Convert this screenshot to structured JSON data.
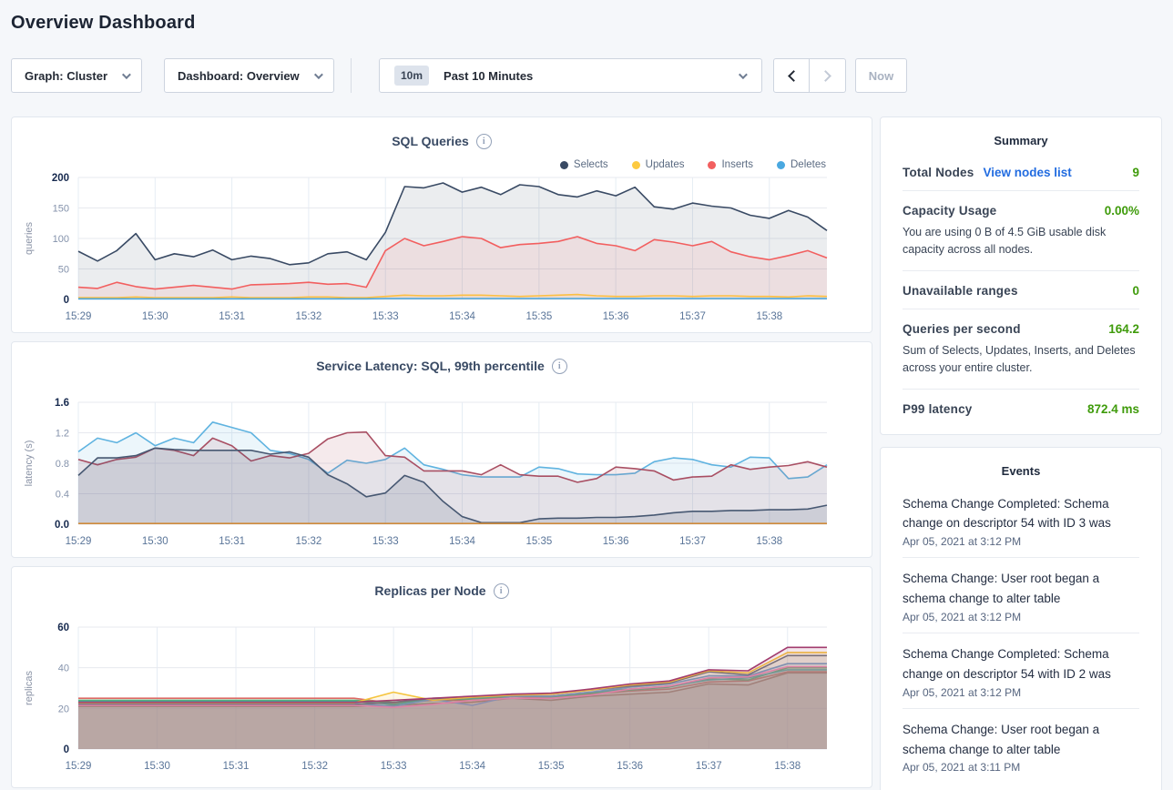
{
  "page": {
    "title": "Overview Dashboard"
  },
  "controls": {
    "graph_dropdown": "Graph: Cluster",
    "dashboard_dropdown": "Dashboard: Overview",
    "time_badge": "10m",
    "time_label": "Past 10 Minutes",
    "now_label": "Now"
  },
  "summary": {
    "title": "Summary",
    "rows": [
      {
        "label": "Total Nodes",
        "link": "View nodes list",
        "value": "9",
        "sub": ""
      },
      {
        "label": "Capacity Usage",
        "link": "",
        "value": "0.00%",
        "sub": "You are using 0 B of 4.5 GiB usable disk capacity across all nodes."
      },
      {
        "label": "Unavailable ranges",
        "link": "",
        "value": "0",
        "sub": ""
      },
      {
        "label": "Queries per second",
        "link": "",
        "value": "164.2",
        "sub": "Sum of Selects, Updates, Inserts, and Deletes across your entire cluster."
      },
      {
        "label": "P99 latency",
        "link": "",
        "value": "872.4 ms",
        "sub": ""
      }
    ]
  },
  "events": {
    "title": "Events",
    "items": [
      {
        "text": "Schema Change Completed: Schema change on descriptor 54 with ID 3 was",
        "time": "Apr 05, 2021 at 3:12 PM"
      },
      {
        "text": "Schema Change: User root began a schema change to alter table",
        "time": "Apr 05, 2021 at 3:12 PM"
      },
      {
        "text": "Schema Change Completed: Schema change on descriptor 54 with ID 2 was",
        "time": "Apr 05, 2021 at 3:12 PM"
      },
      {
        "text": "Schema Change: User root began a schema change to alter table",
        "time": "Apr 05, 2021 at 3:11 PM"
      }
    ]
  },
  "chart_data": [
    {
      "type": "area",
      "title": "SQL Queries",
      "ylabel": "queries",
      "ylim": [
        0,
        200
      ],
      "yticks": [
        0,
        50,
        100,
        150,
        200
      ],
      "ytick_labels": [
        "0",
        "50",
        "100",
        "150",
        "200"
      ],
      "x_ticks": [
        "15:29",
        "15:30",
        "15:31",
        "15:32",
        "15:33",
        "15:34",
        "15:35",
        "15:36",
        "15:37",
        "15:38"
      ],
      "points_per_minute": 4,
      "grid": true,
      "legend_position": "top-right",
      "series": [
        {
          "name": "Selects",
          "color": "#394a64",
          "fill_opacity": 0.1,
          "values": [
            79,
            63,
            80,
            108,
            65,
            75,
            70,
            81,
            65,
            71,
            67,
            57,
            60,
            75,
            78,
            65,
            110,
            185,
            183,
            191,
            176,
            184,
            172,
            188,
            185,
            172,
            168,
            178,
            170,
            184,
            152,
            148,
            158,
            153,
            150,
            138,
            133,
            146,
            135,
            113
          ]
        },
        {
          "name": "Updates",
          "color": "#fdca40",
          "fill_opacity": 0.1,
          "values": [
            3,
            3,
            3,
            4,
            3,
            3,
            3,
            3,
            4,
            3,
            3,
            3,
            4,
            4,
            3,
            3,
            5,
            7,
            6,
            6,
            7,
            7,
            6,
            5,
            6,
            7,
            8,
            6,
            5,
            5,
            6,
            6,
            5,
            6,
            6,
            5,
            5,
            4,
            6,
            5
          ]
        },
        {
          "name": "Inserts",
          "color": "#f25f5f",
          "fill_opacity": 0.1,
          "values": [
            20,
            18,
            28,
            21,
            17,
            20,
            23,
            20,
            17,
            24,
            25,
            26,
            28,
            25,
            26,
            20,
            80,
            100,
            88,
            95,
            103,
            100,
            85,
            90,
            92,
            95,
            103,
            92,
            88,
            80,
            98,
            94,
            88,
            95,
            78,
            70,
            65,
            72,
            80,
            68
          ]
        },
        {
          "name": "Deletes",
          "color": "#4aa8e0",
          "fill_opacity": 0.1,
          "values": [
            1,
            1,
            1,
            1,
            1,
            1,
            1,
            1,
            1,
            1,
            1,
            1,
            1,
            1,
            1,
            1,
            1.5,
            1.5,
            1.5,
            1.5,
            1.5,
            1.5,
            1.5,
            1.5,
            1.5,
            1.5,
            1.5,
            1.5,
            1.5,
            1.5,
            1.5,
            1.5,
            1.5,
            1.5,
            1.5,
            1.5,
            1.5,
            1.5,
            1.5,
            1.5
          ]
        }
      ]
    },
    {
      "type": "area",
      "title": "Service Latency: SQL, 99th percentile",
      "ylabel": "latency (s)",
      "ylim": [
        0,
        1.6
      ],
      "yticks": [
        0,
        0.4,
        0.8,
        1.2,
        1.6
      ],
      "ytick_labels": [
        "0.0",
        "0.4",
        "0.8",
        "1.2",
        "1.6"
      ],
      "x_ticks": [
        "15:29",
        "15:30",
        "15:31",
        "15:32",
        "15:33",
        "15:34",
        "15:35",
        "15:36",
        "15:37",
        "15:38"
      ],
      "points_per_minute": 4,
      "grid": true,
      "legend_position": "none",
      "series": [
        {
          "name": "",
          "color": "#5fb3e0",
          "fill_opacity": 0.12,
          "values": [
            0.95,
            1.13,
            1.07,
            1.2,
            1.03,
            1.13,
            1.07,
            1.34,
            1.27,
            1.2,
            0.97,
            0.93,
            0.85,
            0.67,
            0.84,
            0.8,
            0.85,
            1.0,
            0.78,
            0.72,
            0.65,
            0.62,
            0.62,
            0.62,
            0.75,
            0.73,
            0.66,
            0.65,
            0.65,
            0.67,
            0.82,
            0.87,
            0.85,
            0.78,
            0.75,
            0.88,
            0.87,
            0.6,
            0.62,
            0.78
          ]
        },
        {
          "name": "",
          "color": "#a94f63",
          "fill_opacity": 0.12,
          "values": [
            0.85,
            0.78,
            0.85,
            0.88,
            1.0,
            0.97,
            0.9,
            1.13,
            1.03,
            0.83,
            0.9,
            0.87,
            0.93,
            1.12,
            1.2,
            1.21,
            0.9,
            0.88,
            0.7,
            0.7,
            0.7,
            0.65,
            0.78,
            0.65,
            0.63,
            0.63,
            0.55,
            0.6,
            0.75,
            0.73,
            0.7,
            0.58,
            0.62,
            0.63,
            0.78,
            0.72,
            0.75,
            0.77,
            0.82,
            0.75
          ]
        },
        {
          "name": "",
          "color": "#475872",
          "fill_opacity": 0.14,
          "values": [
            0.64,
            0.87,
            0.87,
            0.9,
            1.0,
            0.98,
            0.97,
            0.97,
            0.97,
            0.97,
            0.92,
            0.95,
            0.88,
            0.65,
            0.53,
            0.36,
            0.41,
            0.64,
            0.55,
            0.3,
            0.1,
            0.02,
            0.02,
            0.02,
            0.07,
            0.08,
            0.08,
            0.09,
            0.09,
            0.1,
            0.12,
            0.15,
            0.17,
            0.17,
            0.18,
            0.18,
            0.19,
            0.19,
            0.2,
            0.25
          ]
        },
        {
          "name": "",
          "color": "#cf8a3b",
          "fill_opacity": 0.0,
          "values": [
            0.01,
            0.01,
            0.01,
            0.01,
            0.01,
            0.01,
            0.01,
            0.01,
            0.01,
            0.01,
            0.01,
            0.01,
            0.01,
            0.01,
            0.01,
            0.01,
            0.01,
            0.01,
            0.01,
            0.01,
            0.01,
            0.01,
            0.01,
            0.01,
            0.01,
            0.01,
            0.01,
            0.01,
            0.01,
            0.01,
            0.01,
            0.01,
            0.01,
            0.01,
            0.01,
            0.01,
            0.01,
            0.01,
            0.01,
            0.01
          ]
        }
      ]
    },
    {
      "type": "area",
      "title": "Replicas per Node",
      "ylabel": "replicas",
      "ylim": [
        0,
        60
      ],
      "yticks": [
        0,
        20,
        40,
        60
      ],
      "ytick_labels": [
        "0",
        "20",
        "40",
        "60"
      ],
      "x_ticks": [
        "15:29",
        "15:30",
        "15:31",
        "15:32",
        "15:33",
        "15:34",
        "15:35",
        "15:36",
        "15:37",
        "15:38"
      ],
      "points_per_minute": 2,
      "grid": true,
      "legend_position": "none",
      "series": [
        {
          "name": "",
          "color": "#a97a6d",
          "fill_opacity": 0.13,
          "values": [
            21,
            21,
            21,
            21,
            21,
            21,
            21,
            21,
            21.5,
            22.5,
            23,
            25,
            24,
            26,
            27,
            28,
            32,
            31.5,
            37.5,
            37.5
          ]
        },
        {
          "name": "",
          "color": "#dd6a65",
          "fill_opacity": 0.13,
          "values": [
            25,
            25,
            25,
            25,
            25,
            25,
            25,
            25,
            22.5,
            24,
            24,
            26,
            25,
            27,
            28.5,
            29.5,
            33,
            33.5,
            38,
            38
          ]
        },
        {
          "name": "",
          "color": "#56b170",
          "fill_opacity": 0.13,
          "values": [
            24,
            24,
            24,
            24,
            24,
            24,
            24,
            24,
            23,
            24.5,
            24.5,
            26.5,
            25.5,
            27.5,
            29,
            30.5,
            34.5,
            34,
            40,
            40
          ]
        },
        {
          "name": "",
          "color": "#3fb3a6",
          "fill_opacity": 0.13,
          "values": [
            23.5,
            23.5,
            23.5,
            23.5,
            23.5,
            23.5,
            23.5,
            23.5,
            22,
            24.5,
            25,
            26,
            26,
            28,
            29.5,
            31,
            34,
            35,
            39,
            39
          ]
        },
        {
          "name": "",
          "color": "#6b9fd8",
          "fill_opacity": 0.13,
          "values": [
            22.5,
            22.5,
            22.5,
            22.5,
            22.5,
            22.5,
            22.5,
            22.5,
            21,
            24.5,
            21.5,
            26,
            26,
            28,
            30.5,
            32,
            36,
            36,
            42,
            42
          ]
        },
        {
          "name": "",
          "color": "#5f6d86",
          "fill_opacity": 0.13,
          "values": [
            22,
            22,
            22,
            22,
            22,
            22,
            22,
            22,
            23,
            25,
            25.5,
            27,
            27,
            29,
            31,
            32.5,
            38,
            36.5,
            46,
            46
          ]
        },
        {
          "name": "",
          "color": "#e586c0",
          "fill_opacity": 0.13,
          "values": [
            21.5,
            21.5,
            21.5,
            21.5,
            21.5,
            21.5,
            21.5,
            21.5,
            20.5,
            22,
            24,
            25,
            25,
            26.5,
            29.5,
            31,
            35,
            35.5,
            40.5,
            40.5
          ]
        },
        {
          "name": "",
          "color": "#f5c43d",
          "fill_opacity": 0.13,
          "values": [
            22.8,
            22.8,
            22.8,
            22.8,
            22.8,
            22.8,
            22.8,
            22.8,
            28,
            24,
            25.5,
            26.5,
            27,
            29,
            31.5,
            33,
            38.5,
            37.5,
            47.5,
            47.5
          ]
        },
        {
          "name": "",
          "color": "#a23c6e",
          "fill_opacity": 0.13,
          "values": [
            23,
            23,
            23,
            23,
            23,
            23,
            23,
            23,
            24,
            25,
            26,
            27,
            27.5,
            29.5,
            32,
            33.5,
            39,
            38.5,
            50,
            50
          ]
        }
      ]
    }
  ]
}
